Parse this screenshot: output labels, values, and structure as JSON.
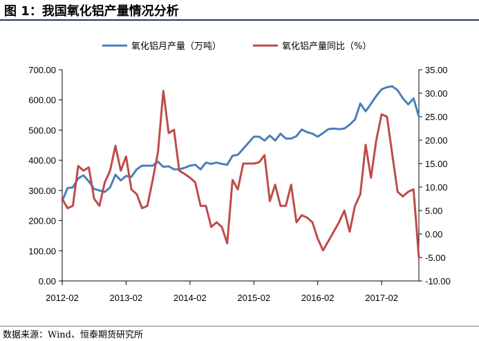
{
  "figure": {
    "title": "图 1：我国氧化铝产量情况分析",
    "source": "数据来源：Wind、恒泰期货研究所"
  },
  "colors": {
    "production": "#4a7ebb",
    "yoy": "#be4b48"
  },
  "chart_data": {
    "type": "line",
    "title": "",
    "x_tick_labels": [
      "2012-02",
      "2013-02",
      "2014-02",
      "2015-02",
      "2016-02",
      "2017-02"
    ],
    "x_start": "2012-02",
    "x_end": "2017-09",
    "left_axis": {
      "ylim": [
        0,
        700
      ],
      "ticks": [
        "0.00",
        "100.00",
        "200.00",
        "300.00",
        "400.00",
        "500.00",
        "600.00",
        "700.00"
      ]
    },
    "right_axis": {
      "ylim": [
        -10,
        35
      ],
      "ticks": [
        "-10.00",
        "-5.00",
        "0.00",
        "5.00",
        "10.00",
        "15.00",
        "20.00",
        "25.00",
        "30.00",
        "35.00"
      ]
    },
    "legend_position": "top",
    "series": [
      {
        "name": "氧化铝月产量（万吨）",
        "axis": "left",
        "x": [
          "2012-02",
          "2012-03",
          "2012-04",
          "2012-05",
          "2012-06",
          "2012-07",
          "2012-08",
          "2012-09",
          "2012-10",
          "2012-11",
          "2012-12",
          "2013-01",
          "2013-02",
          "2013-03",
          "2013-04",
          "2013-05",
          "2013-06",
          "2013-07",
          "2013-08",
          "2013-09",
          "2013-10",
          "2013-11",
          "2013-12",
          "2014-01",
          "2014-02",
          "2014-03",
          "2014-04",
          "2014-05",
          "2014-06",
          "2014-07",
          "2014-08",
          "2014-09",
          "2014-10",
          "2014-11",
          "2014-12",
          "2015-01",
          "2015-02",
          "2015-03",
          "2015-04",
          "2015-05",
          "2015-06",
          "2015-07",
          "2015-08",
          "2015-09",
          "2015-10",
          "2015-11",
          "2015-12",
          "2016-01",
          "2016-02",
          "2016-03",
          "2016-04",
          "2016-05",
          "2016-06",
          "2016-07",
          "2016-08",
          "2016-09",
          "2016-10",
          "2016-11",
          "2016-12",
          "2017-01",
          "2017-02",
          "2017-03",
          "2017-04",
          "2017-05",
          "2017-06",
          "2017-07",
          "2017-08",
          "2017-09"
        ],
        "values": [
          265,
          308,
          310,
          340,
          350,
          330,
          305,
          300,
          295,
          310,
          352,
          333,
          348,
          345,
          370,
          382,
          382,
          382,
          395,
          378,
          380,
          370,
          370,
          375,
          382,
          385,
          370,
          392,
          388,
          392,
          388,
          385,
          415,
          418,
          438,
          458,
          478,
          478,
          465,
          482,
          465,
          488,
          472,
          472,
          480,
          502,
          493,
          488,
          478,
          490,
          503,
          505,
          503,
          505,
          518,
          535,
          588,
          562,
          587,
          613,
          635,
          642,
          645,
          632,
          605,
          585,
          605,
          545
        ]
      },
      {
        "name": "氧化铝产量同比（%）",
        "axis": "right",
        "x": [
          "2012-02",
          "2012-03",
          "2012-04",
          "2012-05",
          "2012-06",
          "2012-07",
          "2012-08",
          "2012-09",
          "2012-10",
          "2012-11",
          "2012-12",
          "2013-01",
          "2013-02",
          "2013-03",
          "2013-04",
          "2013-05",
          "2013-06",
          "2013-07",
          "2013-08",
          "2013-09",
          "2013-10",
          "2013-11",
          "2013-12",
          "2014-01",
          "2014-02",
          "2014-03",
          "2014-04",
          "2014-05",
          "2014-06",
          "2014-07",
          "2014-08",
          "2014-09",
          "2014-10",
          "2014-11",
          "2014-12",
          "2015-01",
          "2015-02",
          "2015-03",
          "2015-04",
          "2015-05",
          "2015-06",
          "2015-07",
          "2015-08",
          "2015-09",
          "2015-10",
          "2015-11",
          "2015-12",
          "2016-01",
          "2016-02",
          "2016-03",
          "2016-04",
          "2016-05",
          "2016-06",
          "2016-07",
          "2016-08",
          "2016-09",
          "2016-10",
          "2016-11",
          "2016-12",
          "2017-01",
          "2017-02",
          "2017-03",
          "2017-04",
          "2017-05",
          "2017-06",
          "2017-07",
          "2017-08",
          "2017-09"
        ],
        "values": [
          7.5,
          5.5,
          6.0,
          14.5,
          13.5,
          14.2,
          7.5,
          6.0,
          11.0,
          13.5,
          18.8,
          13.5,
          16.5,
          9.5,
          8.5,
          5.5,
          6.0,
          11.5,
          17.5,
          30.5,
          21.5,
          22.2,
          13.5,
          12.8,
          12.0,
          11.0,
          6.0,
          6.0,
          1.5,
          2.5,
          1.5,
          -2.0,
          11.5,
          9.5,
          15.0,
          15.0,
          15.0,
          15.3,
          16.8,
          7.0,
          10.5,
          6.0,
          6.0,
          10.5,
          2.5,
          4.0,
          3.5,
          2.5,
          -1.0,
          -3.5,
          -1.5,
          0.5,
          2.5,
          5.0,
          0.5,
          6.0,
          8.5,
          19.0,
          12.0,
          20.0,
          25.5,
          25.0,
          17.0,
          9.0,
          8.0,
          9.0,
          9.5,
          -5.0
        ]
      }
    ]
  }
}
